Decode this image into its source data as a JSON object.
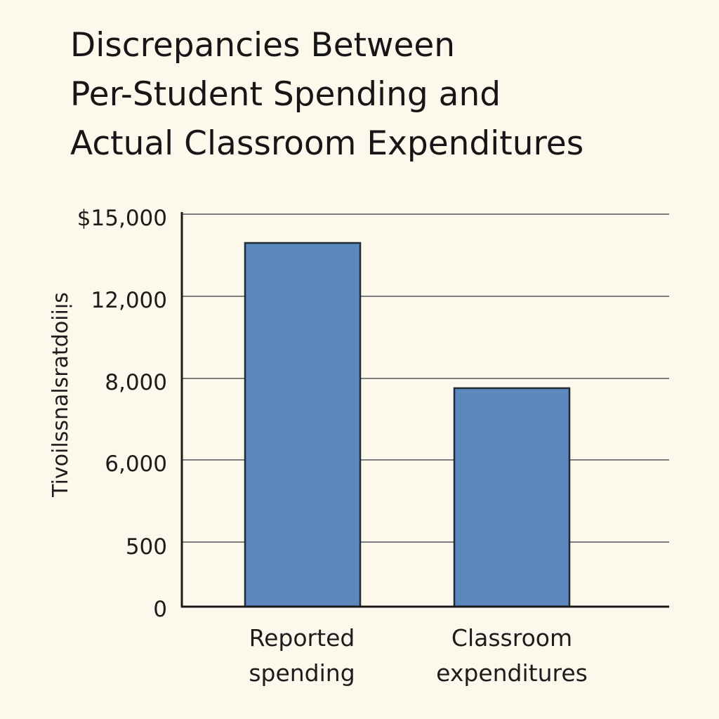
{
  "chart_data": {
    "type": "bar",
    "title_lines": [
      "Discrepancies Between",
      "Per-Student Spending and",
      "Actual Classroom Expenditures"
    ],
    "ylabel": "Tivoilssnalsratdoiiᴉs",
    "y_tick_labels": [
      "$15,000",
      "12,000",
      "8,000",
      "6,000",
      "500",
      "0"
    ],
    "categories": [
      [
        "Reported",
        "spending"
      ],
      [
        "Classroom",
        "expenditures"
      ]
    ],
    "values": [
      13900,
      8350
    ],
    "grid": true,
    "colors": {
      "bar": "#5b88bd",
      "bar_edge": "#1f2a36",
      "axis": "#1a1a1a",
      "grid": "#7c7c7c",
      "background": "#fdf8ec"
    }
  }
}
